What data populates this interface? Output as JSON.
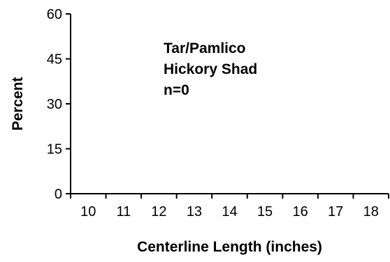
{
  "chart_data": {
    "type": "bar",
    "categories": [
      "10",
      "11",
      "12",
      "13",
      "14",
      "15",
      "16",
      "17",
      "18"
    ],
    "values": [
      0,
      0,
      0,
      0,
      0,
      0,
      0,
      0,
      0
    ],
    "ylim": [
      0,
      60
    ],
    "yticks": [
      "0",
      "15",
      "30",
      "45",
      "60"
    ],
    "xlabel": "Centerline Length (inches)",
    "ylabel": "Percent",
    "annotation": [
      "Tar/Pamlico",
      "Hickory Shad",
      "n=0"
    ],
    "grid": false,
    "legend": "none"
  },
  "colors": {
    "axis": "#000000",
    "text": "#000000",
    "bar": "#000000",
    "background": "#ffffff"
  }
}
